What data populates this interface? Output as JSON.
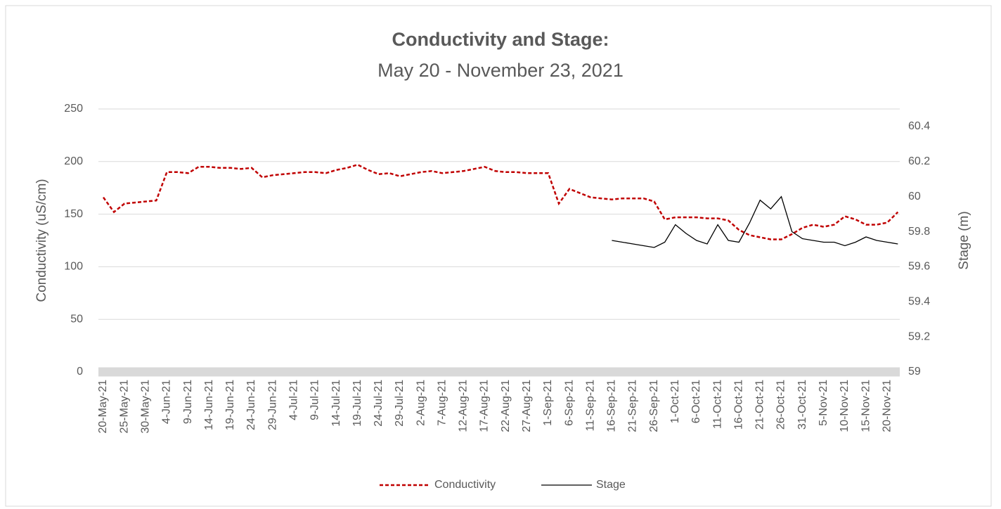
{
  "chart_data": {
    "type": "line",
    "title": "Conductivity and Stage:",
    "subtitle": "May 20 - November 23, 2021",
    "y_label": "Conductivity (uS/cm)",
    "y2_label": "Stage (m)",
    "categories": [
      "20-May-21",
      null,
      "25-May-21",
      null,
      "30-May-21",
      null,
      "4-Jun-21",
      null,
      "9-Jun-21",
      null,
      "14-Jun-21",
      null,
      "19-Jun-21",
      null,
      "24-Jun-21",
      null,
      "29-Jun-21",
      null,
      "4-Jul-21",
      null,
      "9-Jul-21",
      null,
      "14-Jul-21",
      null,
      "19-Jul-21",
      null,
      "24-Jul-21",
      null,
      "29-Jul-21",
      null,
      "2-Aug-21",
      null,
      "7-Aug-21",
      null,
      "12-Aug-21",
      null,
      "17-Aug-21",
      null,
      "22-Aug-21",
      null,
      "27-Aug-21",
      null,
      "1-Sep-21",
      null,
      "6-Sep-21",
      null,
      "11-Sep-21",
      null,
      "16-Sep-21",
      null,
      "21-Sep-21",
      null,
      "26-Sep-21",
      null,
      "1-Oct-21",
      null,
      "6-Oct-21",
      null,
      "11-Oct-21",
      null,
      "16-Oct-21",
      null,
      "21-Oct-21",
      null,
      "26-Oct-21",
      null,
      "31-Oct-21",
      null,
      "5-Nov-21",
      null,
      "10-Nov-21",
      null,
      "15-Nov-21",
      null,
      "20-Nov-21",
      null
    ],
    "series": [
      {
        "name": "Conductivity",
        "color": "#c00000",
        "dashed": true,
        "values": [
          166,
          152,
          160,
          161,
          162,
          163,
          190,
          190,
          189,
          195,
          195,
          194,
          194,
          193,
          194,
          185,
          187,
          188,
          189,
          190,
          190,
          189,
          192,
          194,
          197,
          192,
          188,
          189,
          186,
          188,
          190,
          191,
          189,
          190,
          191,
          193,
          195,
          191,
          190,
          190,
          189,
          189,
          189,
          160,
          174,
          170,
          166,
          165,
          164,
          165,
          165,
          165,
          162,
          145,
          147,
          147,
          147,
          146,
          146,
          144,
          135,
          130,
          128,
          126,
          126,
          131,
          137,
          140,
          138,
          140,
          148,
          145,
          140,
          140,
          142,
          152
        ]
      },
      {
        "name": "Stage",
        "color": "#000000",
        "axis": "y2",
        "dashed": false,
        "values": [
          null,
          null,
          null,
          null,
          null,
          null,
          null,
          null,
          null,
          null,
          null,
          null,
          null,
          null,
          null,
          null,
          null,
          null,
          null,
          null,
          null,
          null,
          null,
          null,
          null,
          null,
          null,
          null,
          null,
          null,
          null,
          null,
          null,
          null,
          null,
          null,
          null,
          null,
          null,
          null,
          null,
          null,
          null,
          null,
          null,
          null,
          null,
          null,
          59.75,
          59.74,
          59.73,
          59.72,
          59.71,
          59.74,
          59.84,
          59.79,
          59.75,
          59.73,
          59.84,
          59.75,
          59.74,
          59.85,
          59.98,
          59.93,
          60.0,
          59.8,
          59.76,
          59.75,
          59.74,
          59.74,
          59.72,
          59.74,
          59.77,
          59.75,
          59.74,
          59.73
        ]
      }
    ],
    "ylim": [
      0,
      250
    ],
    "yticks": [
      0,
      50,
      100,
      150,
      200,
      250
    ],
    "y2lim": [
      59,
      60.5
    ],
    "y2ticks": [
      59,
      59.2,
      59.4,
      59.6,
      59.8,
      {
        "value": 60,
        "label": "60"
      },
      60.2,
      60.4
    ],
    "grid": true,
    "legend": "bottom"
  }
}
